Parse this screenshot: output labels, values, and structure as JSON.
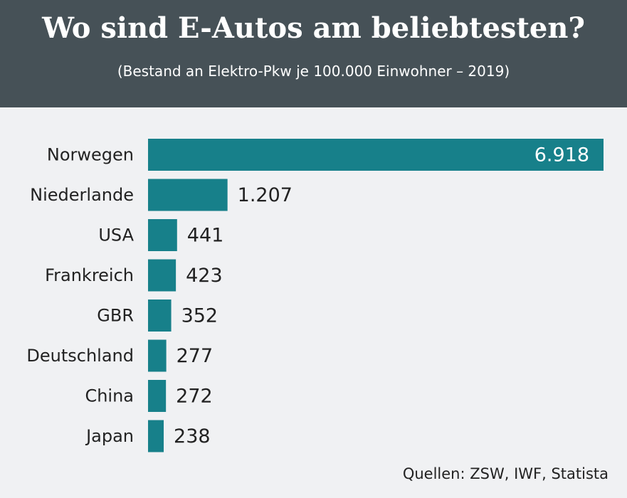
{
  "header": {
    "title": "Wo sind E-Autos am beliebtesten?",
    "subtitle": "(Bestand an Elektro-Pkw je 100.000 Einwohner – 2019)"
  },
  "footer": {
    "source": "Quellen: ZSW, IWF, Statista"
  },
  "colors": {
    "header_bg": "#465157",
    "page_bg": "#f0f1f3",
    "bar": "#17808a",
    "text": "#222222"
  },
  "chart_data": {
    "type": "bar",
    "orientation": "horizontal",
    "categories": [
      "Norwegen",
      "Niederlande",
      "USA",
      "Frankreich",
      "GBR",
      "Deutschland",
      "China",
      "Japan"
    ],
    "values": [
      6918,
      1207,
      441,
      423,
      352,
      277,
      272,
      238
    ],
    "labels": [
      "6.918",
      "1.207",
      "441",
      "423",
      "352",
      "277",
      "272",
      "238"
    ],
    "xlim": [
      0,
      6918
    ],
    "grid": false,
    "legend": "none"
  }
}
